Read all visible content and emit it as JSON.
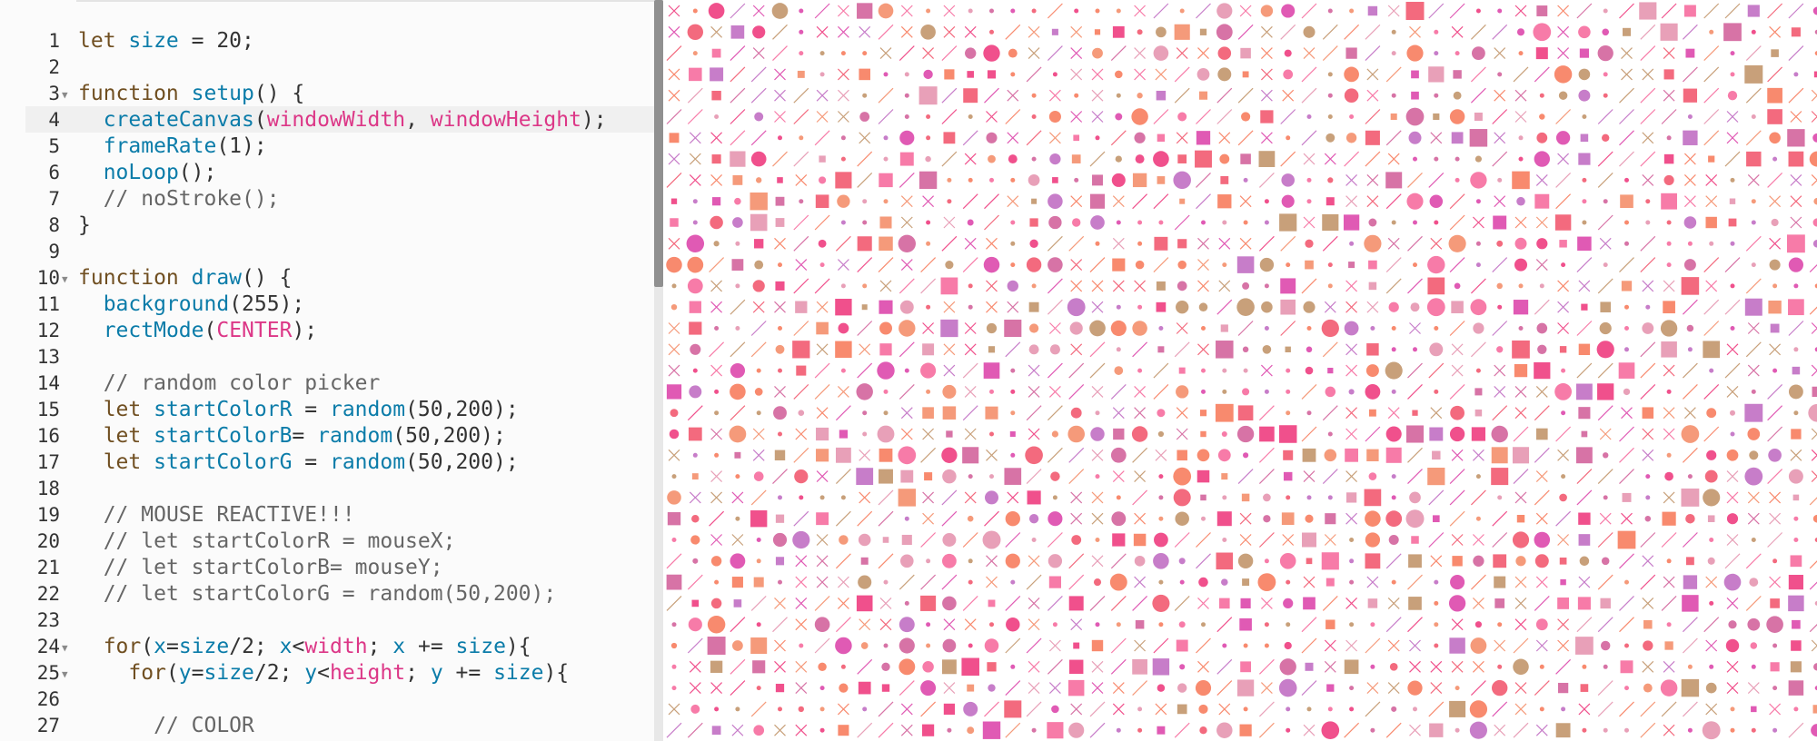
{
  "editor": {
    "active_line": 4,
    "lines": [
      {
        "num": "1",
        "fold": false,
        "tokens": [
          {
            "t": "kw",
            "v": "let "
          },
          {
            "t": "nm",
            "v": "size"
          },
          {
            "t": "pl",
            "v": " = 20;"
          }
        ]
      },
      {
        "num": "2",
        "fold": false,
        "tokens": []
      },
      {
        "num": "3",
        "fold": true,
        "tokens": [
          {
            "t": "kw",
            "v": "function "
          },
          {
            "t": "nm",
            "v": "setup"
          },
          {
            "t": "pl",
            "v": "() {"
          }
        ]
      },
      {
        "num": "4",
        "fold": false,
        "tokens": [
          {
            "t": "pl",
            "v": "  "
          },
          {
            "t": "nm",
            "v": "createCanvas"
          },
          {
            "t": "pl",
            "v": "("
          },
          {
            "t": "vr",
            "v": "windowWidth"
          },
          {
            "t": "pl",
            "v": ", "
          },
          {
            "t": "vr",
            "v": "windowHeight"
          },
          {
            "t": "pl",
            "v": ");"
          }
        ]
      },
      {
        "num": "5",
        "fold": false,
        "tokens": [
          {
            "t": "pl",
            "v": "  "
          },
          {
            "t": "nm",
            "v": "frameRate"
          },
          {
            "t": "pl",
            "v": "(1);"
          }
        ]
      },
      {
        "num": "6",
        "fold": false,
        "tokens": [
          {
            "t": "pl",
            "v": "  "
          },
          {
            "t": "nm",
            "v": "noLoop"
          },
          {
            "t": "pl",
            "v": "();"
          }
        ]
      },
      {
        "num": "7",
        "fold": false,
        "tokens": [
          {
            "t": "pl",
            "v": "  "
          },
          {
            "t": "cm",
            "v": "// noStroke();"
          }
        ]
      },
      {
        "num": "8",
        "fold": false,
        "tokens": [
          {
            "t": "pl",
            "v": "}"
          }
        ]
      },
      {
        "num": "9",
        "fold": false,
        "tokens": []
      },
      {
        "num": "10",
        "fold": true,
        "tokens": [
          {
            "t": "kw",
            "v": "function "
          },
          {
            "t": "nm",
            "v": "draw"
          },
          {
            "t": "pl",
            "v": "() {"
          }
        ]
      },
      {
        "num": "11",
        "fold": false,
        "tokens": [
          {
            "t": "pl",
            "v": "  "
          },
          {
            "t": "nm",
            "v": "background"
          },
          {
            "t": "pl",
            "v": "(255);"
          }
        ]
      },
      {
        "num": "12",
        "fold": false,
        "tokens": [
          {
            "t": "pl",
            "v": "  "
          },
          {
            "t": "nm",
            "v": "rectMode"
          },
          {
            "t": "pl",
            "v": "("
          },
          {
            "t": "vr",
            "v": "CENTER"
          },
          {
            "t": "pl",
            "v": ");"
          }
        ]
      },
      {
        "num": "13",
        "fold": false,
        "tokens": []
      },
      {
        "num": "14",
        "fold": false,
        "tokens": [
          {
            "t": "pl",
            "v": "  "
          },
          {
            "t": "cm",
            "v": "// random color picker"
          }
        ]
      },
      {
        "num": "15",
        "fold": false,
        "tokens": [
          {
            "t": "pl",
            "v": "  "
          },
          {
            "t": "kw",
            "v": "let "
          },
          {
            "t": "nm",
            "v": "startColorR"
          },
          {
            "t": "pl",
            "v": " = "
          },
          {
            "t": "nm",
            "v": "random"
          },
          {
            "t": "pl",
            "v": "(50,200);"
          }
        ]
      },
      {
        "num": "16",
        "fold": false,
        "tokens": [
          {
            "t": "pl",
            "v": "  "
          },
          {
            "t": "kw",
            "v": "let "
          },
          {
            "t": "nm",
            "v": "startColorB"
          },
          {
            "t": "pl",
            "v": "= "
          },
          {
            "t": "nm",
            "v": "random"
          },
          {
            "t": "pl",
            "v": "(50,200);"
          }
        ]
      },
      {
        "num": "17",
        "fold": false,
        "tokens": [
          {
            "t": "pl",
            "v": "  "
          },
          {
            "t": "kw",
            "v": "let "
          },
          {
            "t": "nm",
            "v": "startColorG"
          },
          {
            "t": "pl",
            "v": " = "
          },
          {
            "t": "nm",
            "v": "random"
          },
          {
            "t": "pl",
            "v": "(50,200);"
          }
        ]
      },
      {
        "num": "18",
        "fold": false,
        "tokens": []
      },
      {
        "num": "19",
        "fold": false,
        "tokens": [
          {
            "t": "pl",
            "v": "  "
          },
          {
            "t": "cm",
            "v": "// MOUSE REACTIVE!!!"
          }
        ]
      },
      {
        "num": "20",
        "fold": false,
        "tokens": [
          {
            "t": "pl",
            "v": "  "
          },
          {
            "t": "cm",
            "v": "// let startColorR = mouseX;"
          }
        ]
      },
      {
        "num": "21",
        "fold": false,
        "tokens": [
          {
            "t": "pl",
            "v": "  "
          },
          {
            "t": "cm",
            "v": "// let startColorB= mouseY;"
          }
        ]
      },
      {
        "num": "22",
        "fold": false,
        "tokens": [
          {
            "t": "pl",
            "v": "  "
          },
          {
            "t": "cm",
            "v": "// let startColorG = random(50,200);"
          }
        ]
      },
      {
        "num": "23",
        "fold": false,
        "tokens": []
      },
      {
        "num": "24",
        "fold": true,
        "tokens": [
          {
            "t": "pl",
            "v": "  "
          },
          {
            "t": "kw",
            "v": "for"
          },
          {
            "t": "pl",
            "v": "("
          },
          {
            "t": "nm",
            "v": "x"
          },
          {
            "t": "pl",
            "v": "="
          },
          {
            "t": "nm",
            "v": "size"
          },
          {
            "t": "pl",
            "v": "/2; "
          },
          {
            "t": "nm",
            "v": "x"
          },
          {
            "t": "pl",
            "v": "<"
          },
          {
            "t": "vr",
            "v": "width"
          },
          {
            "t": "pl",
            "v": "; "
          },
          {
            "t": "nm",
            "v": "x"
          },
          {
            "t": "pl",
            "v": " += "
          },
          {
            "t": "nm",
            "v": "size"
          },
          {
            "t": "pl",
            "v": "){"
          }
        ]
      },
      {
        "num": "25",
        "fold": true,
        "tokens": [
          {
            "t": "pl",
            "v": "    "
          },
          {
            "t": "kw",
            "v": "for"
          },
          {
            "t": "pl",
            "v": "("
          },
          {
            "t": "nm",
            "v": "y"
          },
          {
            "t": "pl",
            "v": "="
          },
          {
            "t": "nm",
            "v": "size"
          },
          {
            "t": "pl",
            "v": "/2; "
          },
          {
            "t": "nm",
            "v": "y"
          },
          {
            "t": "pl",
            "v": "<"
          },
          {
            "t": "vr",
            "v": "height"
          },
          {
            "t": "pl",
            "v": "; "
          },
          {
            "t": "nm",
            "v": "y"
          },
          {
            "t": "pl",
            "v": " += "
          },
          {
            "t": "nm",
            "v": "size"
          },
          {
            "t": "pl",
            "v": "){"
          }
        ]
      },
      {
        "num": "26",
        "fold": false,
        "tokens": []
      },
      {
        "num": "27",
        "fold": false,
        "tokens": [
          {
            "t": "pl",
            "v": "      "
          },
          {
            "t": "cm",
            "v": "// COLOR"
          }
        ]
      }
    ],
    "fold_marker_glyph": "▼"
  },
  "sketch_canvas": {
    "background": "#ffffff",
    "palette": [
      "#f0508c",
      "#e05ab4",
      "#f77ba8",
      "#c8a07a",
      "#f59a7a",
      "#d773a6",
      "#f88a6e",
      "#c77dc9",
      "#e8a0b8",
      "#f36a7e"
    ],
    "shape_kinds": [
      "circle",
      "square",
      "slash",
      "cross",
      "dot"
    ]
  },
  "colors": {
    "keyword": "#704f21",
    "identifier": "#0b7ca9",
    "builtin_variable": "#dc3787",
    "comment": "#666666",
    "plain": "#333333"
  }
}
